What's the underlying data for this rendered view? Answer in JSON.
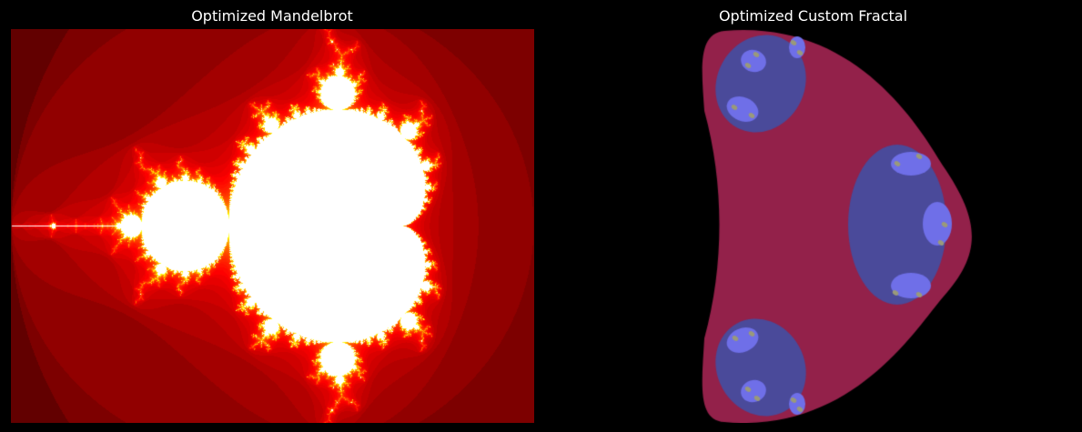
{
  "figure": {
    "background": "#000000",
    "panels": [
      {
        "title": "Optimized Mandelbrot",
        "fractal": "mandelbrot",
        "colormap": "hot",
        "colors": {
          "set": "#ffffff",
          "edge": "#ff2000",
          "outer": "#1a0000"
        },
        "complex_region": {
          "re": [
            -2.0,
            1.0
          ],
          "im": [
            -1.1,
            1.1
          ]
        }
      },
      {
        "title": "Optimized Custom Fractal",
        "fractal": "custom-julia-like",
        "colors": {
          "background": "#000000",
          "outer": "#93214a",
          "mid": "#4a4a9a",
          "inner": "#6f6fe8",
          "spots": "#9a9a7a"
        }
      }
    ]
  }
}
